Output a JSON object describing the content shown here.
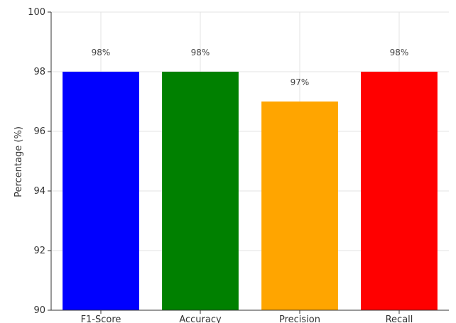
{
  "chart_data": {
    "type": "bar",
    "categories": [
      "F1-Score",
      "Accuracy",
      "Precision",
      "Recall"
    ],
    "values": [
      98,
      98,
      97,
      98
    ],
    "data_labels": [
      "98%",
      "98%",
      "97%",
      "98%"
    ],
    "colors": [
      "#0000ff",
      "#008000",
      "#ffa500",
      "#ff0000"
    ],
    "title": "",
    "xlabel": "",
    "ylabel": "Percentage (%)",
    "ylim": [
      90,
      100
    ],
    "yticks": [
      90,
      92,
      94,
      96,
      98,
      100
    ],
    "grid": true
  }
}
